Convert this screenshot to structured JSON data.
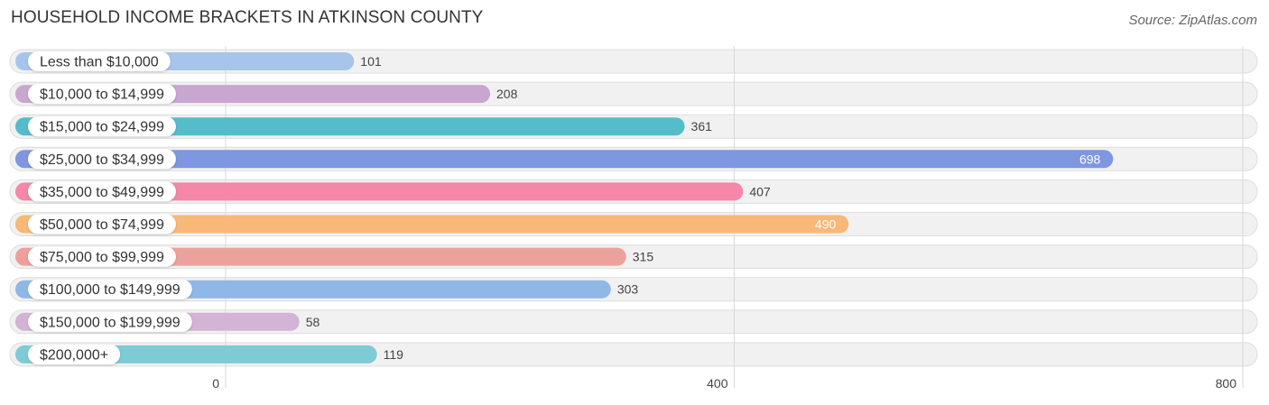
{
  "chart_data": {
    "type": "bar",
    "orientation": "horizontal",
    "title": "HOUSEHOLD INCOME BRACKETS IN ATKINSON COUNTY",
    "source": "Source: ZipAtlas.com",
    "categories": [
      "Less than $10,000",
      "$10,000 to $14,999",
      "$15,000 to $24,999",
      "$25,000 to $34,999",
      "$35,000 to $49,999",
      "$50,000 to $74,999",
      "$75,000 to $99,999",
      "$100,000 to $149,999",
      "$150,000 to $199,999",
      "$200,000+"
    ],
    "values": [
      101,
      208,
      361,
      698,
      407,
      490,
      315,
      303,
      58,
      119
    ],
    "colors": [
      "#a7c5ea",
      "#c9a6cf",
      "#55bcc9",
      "#7f96e0",
      "#f587a9",
      "#f8b877",
      "#eda19d",
      "#90b8e6",
      "#d3b3d6",
      "#7ecbd5"
    ],
    "xlim": [
      0,
      800
    ],
    "ticks": [
      "0",
      "400",
      "800"
    ],
    "tick_values": [
      0,
      400,
      800
    ],
    "grid": true
  }
}
